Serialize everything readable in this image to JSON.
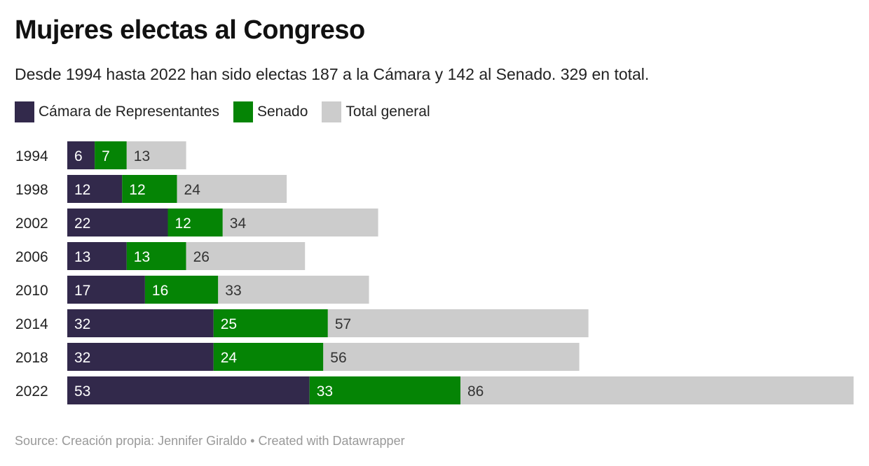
{
  "header": {
    "title": "Mujeres electas al Congreso",
    "subtitle": "Desde 1994 hasta 2022 han sido electas 187 a la Cámara y 142 al Senado. 329 en total."
  },
  "footer": {
    "source": "Source: Creación propia: Jennifer Giraldo • Created with Datawrapper"
  },
  "chart_data": {
    "type": "bar",
    "orientation": "horizontal",
    "stacked": true,
    "title": "Mujeres electas al Congreso",
    "subtitle": "Desde 1994 hasta 2022 han sido electas 187 a la Cámara y 142 al Senado. 329 en total.",
    "categories": [
      "1994",
      "1998",
      "2002",
      "2006",
      "2010",
      "2014",
      "2018",
      "2022"
    ],
    "series": [
      {
        "name": "Cámara de Representantes",
        "color": "#32294b",
        "label_color": "#ffffff",
        "values": [
          6,
          12,
          22,
          13,
          17,
          32,
          32,
          53
        ]
      },
      {
        "name": "Senado",
        "color": "#058405",
        "label_color": "#ffffff",
        "values": [
          7,
          12,
          12,
          13,
          16,
          25,
          24,
          33
        ]
      },
      {
        "name": "Total general",
        "color": "#cccccc",
        "label_color": "#333333",
        "values": [
          13,
          24,
          34,
          26,
          33,
          57,
          56,
          86
        ]
      }
    ],
    "xlim": [
      0,
      172
    ],
    "grid": false,
    "legend_position": "top-left"
  }
}
